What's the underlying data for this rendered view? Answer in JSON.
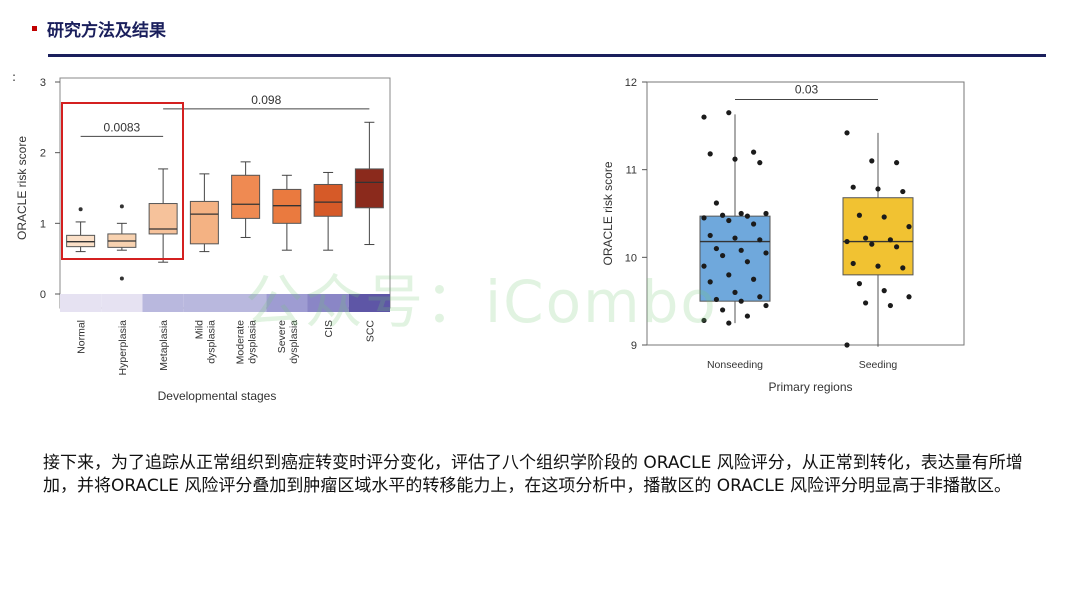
{
  "header": {
    "title": "研究方法及结果"
  },
  "side_marker": ":",
  "watermark": "公众号：iCombo",
  "description": "接下来，为了追踪从正常组织到癌症转变时评分变化，评估了八个组织学阶段的 ORACLE 风险评分，从正常到转化，表达量有所增加，并将ORACLE 风险评分叠加到肿瘤区域水平的转移能力上，在这项分析中，播散区的 ORACLE 风险评分明显高于非播散区。",
  "highlight_color": "#d42020",
  "chart_data": [
    {
      "type": "box",
      "xlabel": "Developmental stages",
      "ylabel": "ORACLE risk score",
      "ylim": [
        0,
        3
      ],
      "yticks": [
        0,
        1,
        2,
        3
      ],
      "categories": [
        "Normal",
        "Hyperplasia",
        "Metaplasia",
        "Mild dysplasia",
        "Moderate dysplasia",
        "Severe dysplasia",
        "CIS",
        "SCC"
      ],
      "boxes": [
        {
          "min": 0.6,
          "q1": 0.67,
          "median": 0.74,
          "q3": 0.83,
          "max": 1.02,
          "outliers": [
            1.2
          ],
          "color": "#fbe0c8"
        },
        {
          "min": 0.62,
          "q1": 0.66,
          "median": 0.75,
          "q3": 0.85,
          "max": 1.0,
          "outliers": [
            1.24,
            0.22
          ],
          "color": "#f8d2b0"
        },
        {
          "min": 0.45,
          "q1": 0.85,
          "median": 0.92,
          "q3": 1.28,
          "max": 1.77,
          "outliers": [],
          "color": "#f6c29b"
        },
        {
          "min": 0.6,
          "q1": 0.71,
          "median": 1.13,
          "q3": 1.31,
          "max": 1.7,
          "outliers": [],
          "color": "#f4b283"
        },
        {
          "min": 0.8,
          "q1": 1.07,
          "median": 1.27,
          "q3": 1.68,
          "max": 1.87,
          "outliers": [],
          "color": "#ef8a52"
        },
        {
          "min": 0.62,
          "q1": 1.0,
          "median": 1.25,
          "q3": 1.48,
          "max": 1.68,
          "outliers": [],
          "color": "#ea7a3f"
        },
        {
          "min": 0.62,
          "q1": 1.1,
          "median": 1.3,
          "q3": 1.55,
          "max": 1.72,
          "outliers": [],
          "color": "#d65a28"
        },
        {
          "min": 0.7,
          "q1": 1.22,
          "median": 1.58,
          "q3": 1.77,
          "max": 2.43,
          "outliers": [],
          "color": "#8b2a1c"
        }
      ],
      "annotations": [
        {
          "label": "0.0083",
          "from": 0,
          "to": 2,
          "y": 2.23
        },
        {
          "label": "0.098",
          "from": 2,
          "to": 7,
          "y": 2.62
        }
      ],
      "stage_bar": [
        {
          "from": 0,
          "to": 1,
          "color": "#e6e2f2"
        },
        {
          "from": 1,
          "to": 2,
          "color": "#e6e2f2"
        },
        {
          "from": 2,
          "to": 3,
          "color": "#b9b8de"
        },
        {
          "from": 3,
          "to": 4,
          "color": "#b9b8de"
        },
        {
          "from": 4,
          "to": 5,
          "color": "#b9b8de"
        },
        {
          "from": 5,
          "to": 6,
          "color": "#9e9cd2"
        },
        {
          "from": 6,
          "to": 7,
          "color": "#8a86c6"
        },
        {
          "from": 7,
          "to": 8,
          "color": "#5e56a6"
        }
      ]
    },
    {
      "type": "box",
      "xlabel": "Primary regions",
      "ylabel": "ORACLE risk score",
      "ylim": [
        9,
        12
      ],
      "yticks": [
        9,
        10,
        11,
        12
      ],
      "categories": [
        "Nonseeding",
        "Seeding"
      ],
      "boxes": [
        {
          "min": 9.25,
          "q1": 9.5,
          "median": 10.18,
          "q3": 10.47,
          "max": 11.63,
          "color": "#6fa8dc",
          "points": [
            11.6,
            11.65,
            11.2,
            11.18,
            11.12,
            11.08,
            10.62,
            10.5,
            10.5,
            10.48,
            10.47,
            10.45,
            10.42,
            10.38,
            10.25,
            10.22,
            10.2,
            10.1,
            10.08,
            10.05,
            10.02,
            9.95,
            9.9,
            9.8,
            9.75,
            9.72,
            9.6,
            9.55,
            9.52,
            9.5,
            9.45,
            9.4,
            9.33,
            9.28,
            9.25
          ]
        },
        {
          "min": 8.98,
          "q1": 9.8,
          "median": 10.18,
          "q3": 10.68,
          "max": 11.42,
          "color": "#f1c232",
          "points": [
            11.42,
            11.1,
            11.08,
            10.8,
            10.78,
            10.75,
            10.48,
            10.46,
            10.35,
            10.22,
            10.2,
            10.18,
            10.15,
            10.12,
            9.93,
            9.9,
            9.88,
            9.7,
            9.62,
            9.55,
            9.48,
            9.45,
            9.0
          ]
        }
      ],
      "annotations": [
        {
          "label": "0.03",
          "from": 0,
          "to": 1,
          "y": 11.8
        }
      ]
    }
  ]
}
